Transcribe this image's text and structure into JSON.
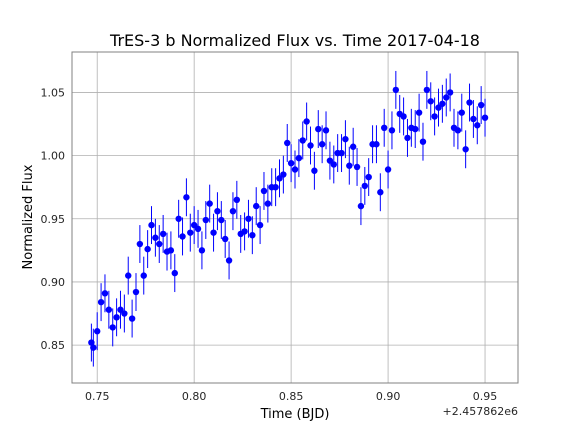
{
  "chart_data": {
    "type": "scatter",
    "title": "TrES-3 b Normalized Flux vs. Time 2017-04-18",
    "xlabel": "Time (BJD)",
    "ylabel": "Normalized Flux",
    "x_offset_label": "+2.457862e6",
    "xlim": [
      0.737,
      0.967
    ],
    "ylim": [
      0.82,
      1.082
    ],
    "x_ticks": [
      0.75,
      0.8,
      0.85,
      0.9,
      0.95
    ],
    "x_tick_labels": [
      "0.75",
      "0.80",
      "0.85",
      "0.90",
      "0.95"
    ],
    "y_ticks": [
      0.85,
      0.9,
      0.95,
      1.0,
      1.05
    ],
    "y_tick_labels": [
      "0.85",
      "0.90",
      "0.95",
      "1.00",
      "1.05"
    ],
    "grid": true,
    "error_bar_color": "#0000ff",
    "marker_color": "#0000ff",
    "points": [
      [
        0.747,
        0.852,
        0.015
      ],
      [
        0.748,
        0.848,
        0.015
      ],
      [
        0.75,
        0.861,
        0.015
      ],
      [
        0.752,
        0.884,
        0.015
      ],
      [
        0.754,
        0.891,
        0.015
      ],
      [
        0.756,
        0.878,
        0.015
      ],
      [
        0.758,
        0.864,
        0.015
      ],
      [
        0.76,
        0.872,
        0.015
      ],
      [
        0.762,
        0.878,
        0.015
      ],
      [
        0.764,
        0.875,
        0.015
      ],
      [
        0.766,
        0.905,
        0.015
      ],
      [
        0.768,
        0.871,
        0.015
      ],
      [
        0.77,
        0.892,
        0.015
      ],
      [
        0.772,
        0.93,
        0.015
      ],
      [
        0.774,
        0.905,
        0.015
      ],
      [
        0.776,
        0.926,
        0.015
      ],
      [
        0.778,
        0.945,
        0.015
      ],
      [
        0.78,
        0.935,
        0.015
      ],
      [
        0.782,
        0.93,
        0.015
      ],
      [
        0.784,
        0.938,
        0.015
      ],
      [
        0.786,
        0.924,
        0.015
      ],
      [
        0.788,
        0.925,
        0.015
      ],
      [
        0.79,
        0.907,
        0.015
      ],
      [
        0.792,
        0.95,
        0.015
      ],
      [
        0.794,
        0.936,
        0.015
      ],
      [
        0.796,
        0.967,
        0.015
      ],
      [
        0.798,
        0.939,
        0.015
      ],
      [
        0.8,
        0.945,
        0.015
      ],
      [
        0.802,
        0.942,
        0.015
      ],
      [
        0.804,
        0.925,
        0.015
      ],
      [
        0.806,
        0.949,
        0.015
      ],
      [
        0.808,
        0.962,
        0.015
      ],
      [
        0.81,
        0.939,
        0.015
      ],
      [
        0.812,
        0.956,
        0.015
      ],
      [
        0.814,
        0.949,
        0.015
      ],
      [
        0.816,
        0.934,
        0.015
      ],
      [
        0.818,
        0.917,
        0.015
      ],
      [
        0.82,
        0.956,
        0.015
      ],
      [
        0.822,
        0.965,
        0.015
      ],
      [
        0.824,
        0.938,
        0.015
      ],
      [
        0.826,
        0.94,
        0.015
      ],
      [
        0.828,
        0.95,
        0.015
      ],
      [
        0.83,
        0.937,
        0.015
      ],
      [
        0.832,
        0.96,
        0.015
      ],
      [
        0.834,
        0.945,
        0.015
      ],
      [
        0.836,
        0.972,
        0.015
      ],
      [
        0.838,
        0.962,
        0.015
      ],
      [
        0.84,
        0.975,
        0.015
      ],
      [
        0.842,
        0.975,
        0.015
      ],
      [
        0.844,
        0.982,
        0.015
      ],
      [
        0.846,
        0.985,
        0.015
      ],
      [
        0.848,
        1.01,
        0.015
      ],
      [
        0.85,
        0.994,
        0.015
      ],
      [
        0.852,
        0.989,
        0.015
      ],
      [
        0.854,
        0.998,
        0.015
      ],
      [
        0.856,
        1.012,
        0.015
      ],
      [
        0.858,
        1.027,
        0.015
      ],
      [
        0.86,
        1.008,
        0.015
      ],
      [
        0.862,
        0.988,
        0.015
      ],
      [
        0.864,
        1.021,
        0.015
      ],
      [
        0.866,
        1.009,
        0.015
      ],
      [
        0.868,
        1.02,
        0.015
      ],
      [
        0.87,
        0.996,
        0.015
      ],
      [
        0.872,
        0.993,
        0.015
      ],
      [
        0.874,
        1.002,
        0.015
      ],
      [
        0.876,
        1.002,
        0.015
      ],
      [
        0.878,
        1.013,
        0.015
      ],
      [
        0.88,
        0.992,
        0.015
      ],
      [
        0.882,
        1.007,
        0.015
      ],
      [
        0.884,
        0.991,
        0.015
      ],
      [
        0.886,
        0.96,
        0.015
      ],
      [
        0.888,
        0.976,
        0.015
      ],
      [
        0.89,
        0.983,
        0.015
      ],
      [
        0.892,
        1.009,
        0.015
      ],
      [
        0.894,
        1.009,
        0.015
      ],
      [
        0.896,
        0.971,
        0.015
      ],
      [
        0.898,
        1.022,
        0.015
      ],
      [
        0.9,
        0.989,
        0.015
      ],
      [
        0.902,
        1.02,
        0.015
      ],
      [
        0.904,
        1.052,
        0.015
      ],
      [
        0.906,
        1.033,
        0.015
      ],
      [
        0.908,
        1.031,
        0.015
      ],
      [
        0.91,
        1.014,
        0.015
      ],
      [
        0.912,
        1.022,
        0.015
      ],
      [
        0.914,
        1.021,
        0.015
      ],
      [
        0.916,
        1.034,
        0.015
      ],
      [
        0.918,
        1.011,
        0.015
      ],
      [
        0.92,
        1.052,
        0.015
      ],
      [
        0.922,
        1.043,
        0.015
      ],
      [
        0.924,
        1.031,
        0.015
      ],
      [
        0.926,
        1.038,
        0.015
      ],
      [
        0.928,
        1.041,
        0.015
      ],
      [
        0.93,
        1.046,
        0.015
      ],
      [
        0.932,
        1.05,
        0.015
      ],
      [
        0.934,
        1.022,
        0.015
      ],
      [
        0.936,
        1.02,
        0.015
      ],
      [
        0.938,
        1.034,
        0.015
      ],
      [
        0.94,
        1.005,
        0.015
      ],
      [
        0.942,
        1.042,
        0.015
      ],
      [
        0.944,
        1.029,
        0.015
      ],
      [
        0.946,
        1.024,
        0.015
      ],
      [
        0.948,
        1.04,
        0.015
      ],
      [
        0.95,
        1.03,
        0.015
      ]
    ]
  }
}
